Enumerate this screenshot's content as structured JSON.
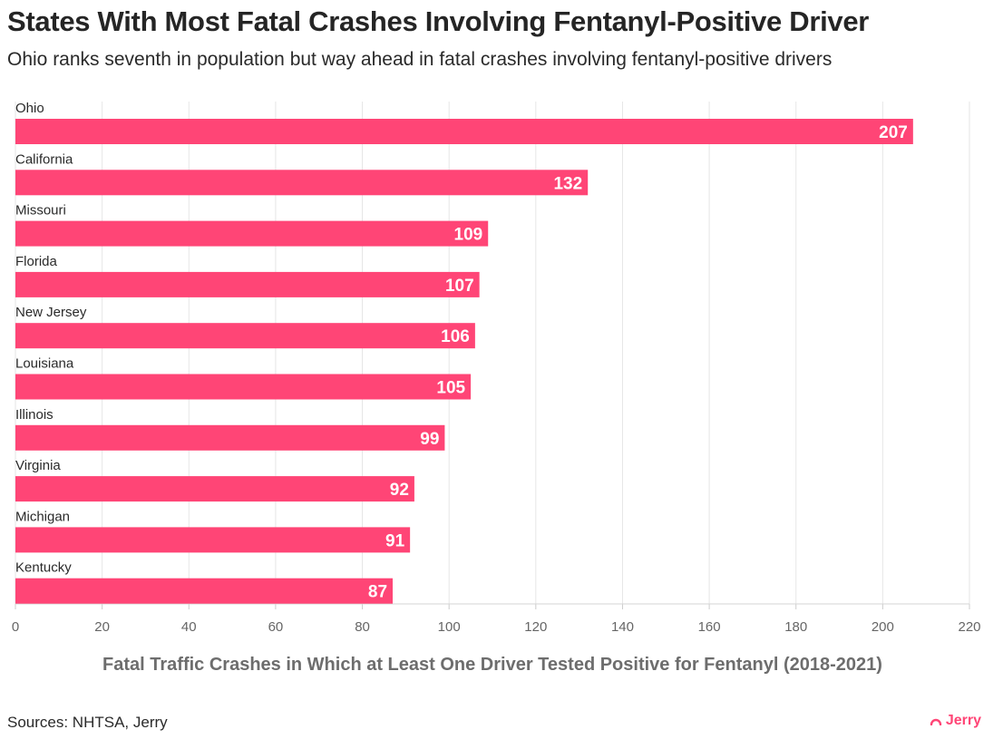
{
  "header": {
    "title": "States With Most Fatal Crashes Involving Fentanyl-Positive Driver",
    "subtitle": "Ohio ranks seventh in population but way ahead in fatal crashes involving fentanyl-positive drivers"
  },
  "footer": {
    "source": "Sources: NHTSA, Jerry",
    "brand": "Jerry"
  },
  "colors": {
    "bar": "#ff4576",
    "grid": "#e6e6e6",
    "tick_text": "#666666",
    "value_text": "#ffffff"
  },
  "chart_data": {
    "type": "bar",
    "orientation": "horizontal",
    "title": "States With Most Fatal Crashes Involving Fentanyl-Positive Driver",
    "subtitle": "Ohio ranks seventh in population but way ahead in fatal crashes involving fentanyl-positive drivers",
    "xlabel": "Fatal Traffic Crashes in Which at Least One Driver Tested Positive for Fentanyl (2018-2021)",
    "ylabel": "",
    "categories": [
      "Ohio",
      "California",
      "Missouri",
      "Florida",
      "New Jersey",
      "Louisiana",
      "Illinois",
      "Virginia",
      "Michigan",
      "Kentucky"
    ],
    "values": [
      207,
      132,
      109,
      107,
      106,
      105,
      99,
      92,
      91,
      87
    ],
    "xlim": [
      0,
      220
    ],
    "xticks": [
      0,
      20,
      40,
      60,
      80,
      100,
      120,
      140,
      160,
      180,
      200,
      220
    ],
    "grid": true,
    "legend": "none"
  }
}
